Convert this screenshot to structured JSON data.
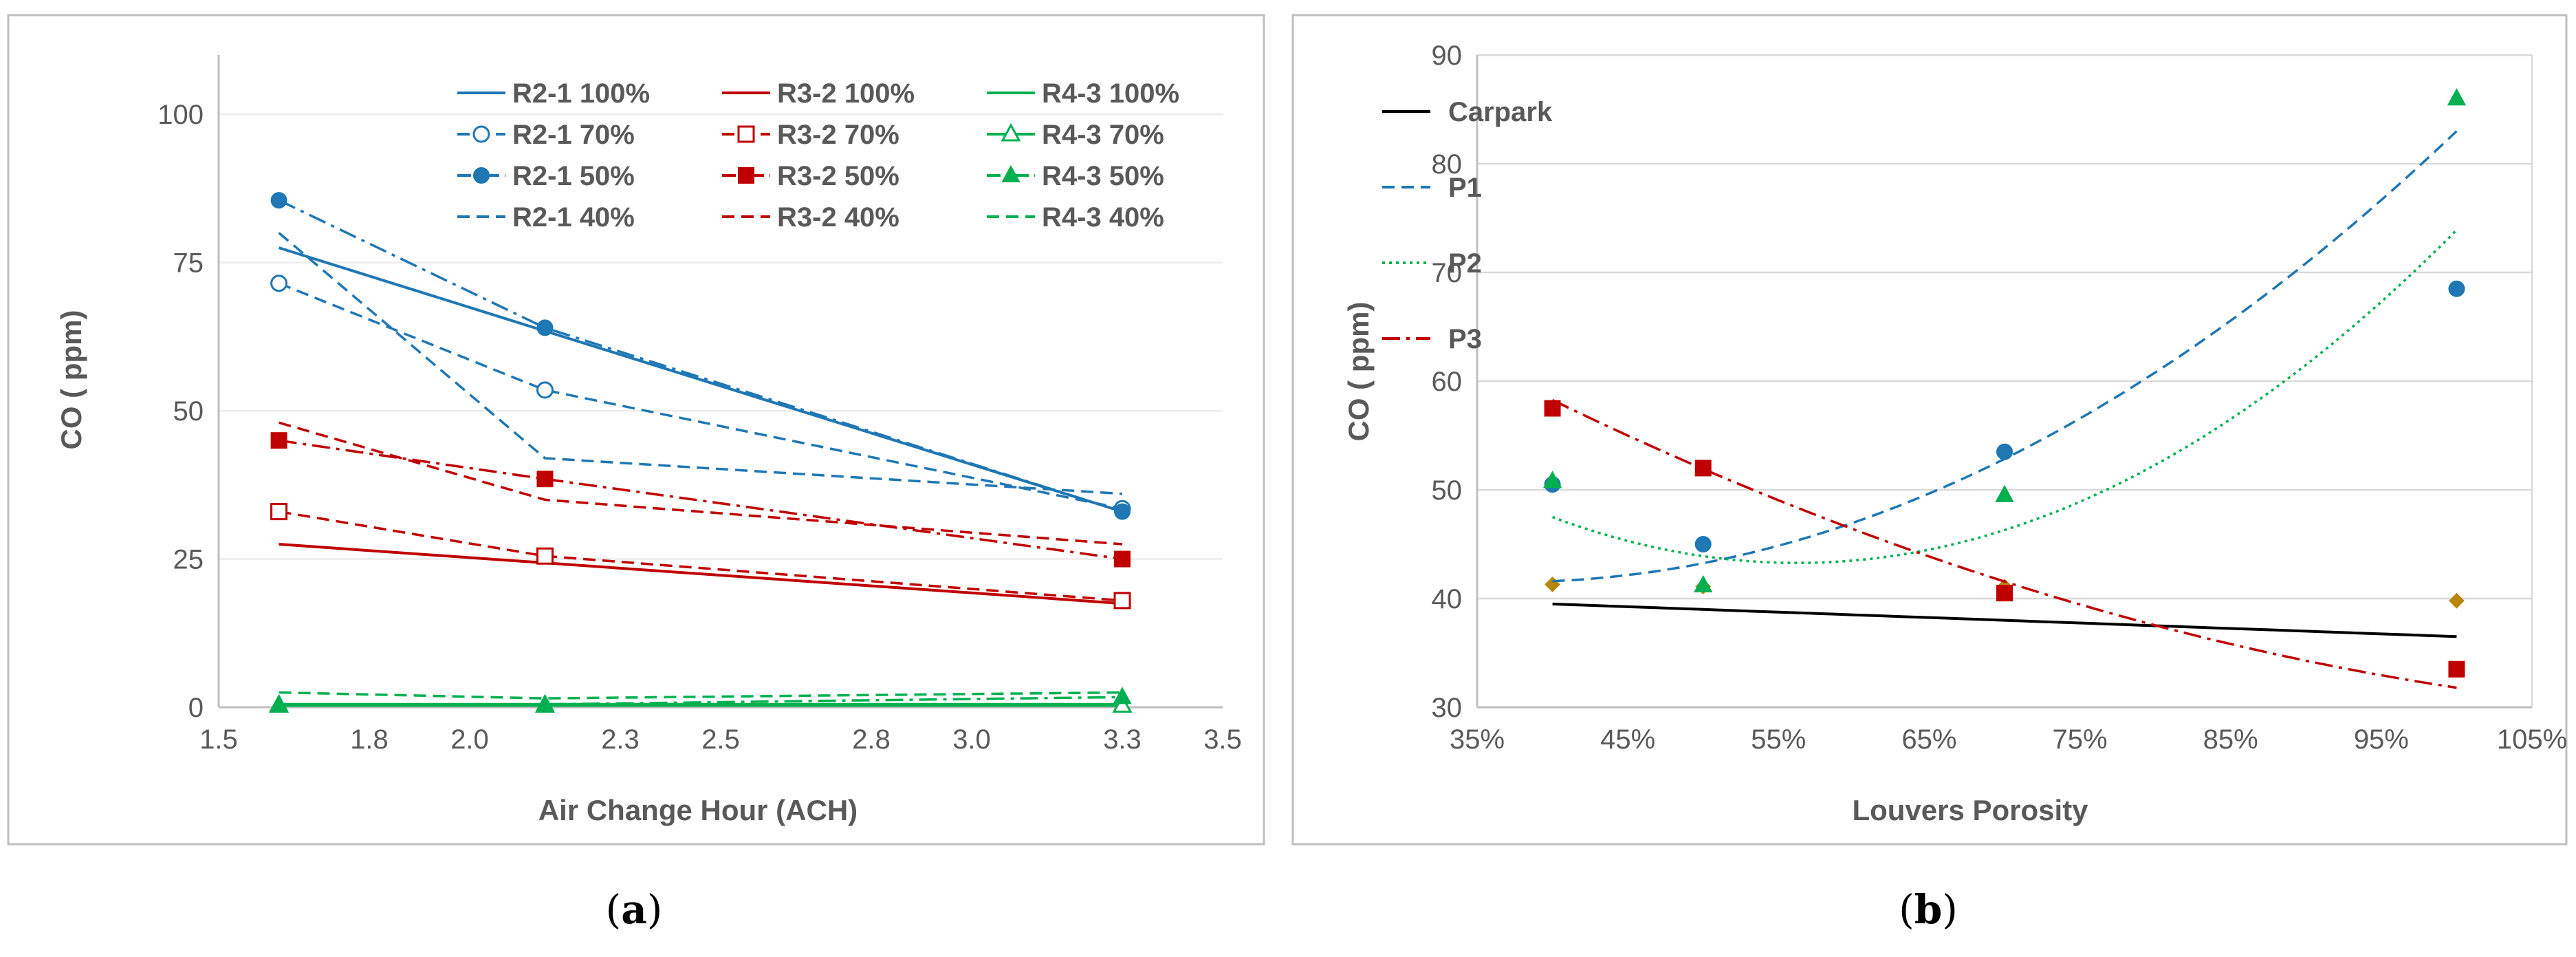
{
  "colors": {
    "blue": "#1f77b4",
    "red": "#c00000",
    "green": "#00b050",
    "black": "#000000",
    "gold": "#b8860b",
    "grid": "#d9d9d9",
    "frame": "#bfbfbf",
    "text": "#595959"
  },
  "chart_data": [
    {
      "type": "line",
      "caption_open": "(",
      "caption_letter": "a",
      "caption_close": ")",
      "title": "",
      "xlabel": "Air Change Hour (ACH)",
      "ylabel": "CO ( ppm)",
      "xlim": [
        1.5,
        3.5
      ],
      "ylim": [
        0,
        110
      ],
      "xticks": [
        1.5,
        1.8,
        2.0,
        2.3,
        2.5,
        2.8,
        3.0,
        3.3,
        3.5
      ],
      "xtick_labels": [
        "1.5",
        "1.8",
        "2.0",
        "2.3",
        "2.5",
        "2.8",
        "3.0",
        "3.3",
        "3.5"
      ],
      "yticks": [
        0,
        25,
        50,
        75,
        100
      ],
      "ytick_labels": [
        "0",
        "25",
        "50",
        "75",
        "100"
      ],
      "grid": true,
      "legend_position": "top-right",
      "series": [
        {
          "name": "R2-1 100%",
          "color": "blue",
          "style": "solid",
          "marker": "none",
          "x": [
            1.62,
            3.3
          ],
          "y": [
            77.5,
            33
          ]
        },
        {
          "name": "R3-2 100%",
          "color": "red",
          "style": "solid",
          "marker": "none",
          "x": [
            1.62,
            3.3
          ],
          "y": [
            27.5,
            17.5
          ]
        },
        {
          "name": "R4-3 100%",
          "color": "green",
          "style": "solid",
          "marker": "none",
          "x": [
            1.62,
            3.3
          ],
          "y": [
            0.5,
            0.5
          ]
        },
        {
          "name": "R2-1 70%",
          "color": "blue",
          "style": "dash",
          "marker": "circle-open",
          "x": [
            1.62,
            2.15,
            3.3
          ],
          "y": [
            71.5,
            53.5,
            33.5
          ]
        },
        {
          "name": "R3-2 70%",
          "color": "red",
          "style": "dash",
          "marker": "square-open",
          "x": [
            1.62,
            2.15,
            3.3
          ],
          "y": [
            33,
            25.5,
            18
          ]
        },
        {
          "name": "R4-3 70%",
          "color": "green",
          "style": "solid",
          "marker": "triangle-open",
          "x": [
            1.62,
            2.15,
            3.3
          ],
          "y": [
            0.3,
            0.3,
            0.3
          ]
        },
        {
          "name": "R2-1 50%",
          "color": "blue",
          "style": "dashdot",
          "marker": "circle",
          "x": [
            1.62,
            2.15,
            3.3
          ],
          "y": [
            85.5,
            64,
            33
          ]
        },
        {
          "name": "R3-2 50%",
          "color": "red",
          "style": "dashdot",
          "marker": "square",
          "x": [
            1.62,
            2.15,
            3.3
          ],
          "y": [
            45,
            38.5,
            25
          ]
        },
        {
          "name": "R4-3 50%",
          "color": "green",
          "style": "dashdot",
          "marker": "triangle",
          "x": [
            1.62,
            2.15,
            3.3
          ],
          "y": [
            0.5,
            0.5,
            1.7
          ]
        },
        {
          "name": "R2-1 40%",
          "color": "blue",
          "style": "dash",
          "marker": "none",
          "x": [
            1.62,
            2.15,
            3.3
          ],
          "y": [
            80,
            42,
            36
          ]
        },
        {
          "name": "R3-2 40%",
          "color": "red",
          "style": "dash",
          "marker": "none",
          "x": [
            1.62,
            2.15,
            3.3
          ],
          "y": [
            48,
            35,
            27.5
          ]
        },
        {
          "name": "R4-3 40%",
          "color": "green",
          "style": "dash",
          "marker": "none",
          "x": [
            1.62,
            2.15,
            3.3
          ],
          "y": [
            2.5,
            1.5,
            2.5
          ]
        }
      ]
    },
    {
      "type": "scatter",
      "caption_open": "(",
      "caption_letter": "b",
      "caption_close": ")",
      "title": "",
      "xlabel": "Louvers Porosity",
      "ylabel": "CO ( ppm)",
      "xlim": [
        35,
        105
      ],
      "ylim": [
        30,
        90
      ],
      "xticks": [
        35,
        45,
        55,
        65,
        75,
        85,
        95,
        105
      ],
      "xtick_labels": [
        "35%",
        "45%",
        "55%",
        "65%",
        "75%",
        "85%",
        "95%",
        "105%"
      ],
      "yticks": [
        30,
        40,
        50,
        60,
        70,
        80,
        90
      ],
      "ytick_labels": [
        "30",
        "40",
        "50",
        "60",
        "70",
        "80",
        "90"
      ],
      "grid": true,
      "legend_position": "top-left",
      "series": [
        {
          "name": "Carpark",
          "color": "black",
          "style": "solid",
          "marker": "diamond",
          "marker_color": "gold",
          "x": [
            40,
            50,
            70,
            100
          ],
          "y": [
            41.3,
            41.1,
            41.1,
            39.8
          ],
          "trend": [
            41.5,
            -0.05,
            0
          ]
        },
        {
          "name": "P1",
          "color": "blue",
          "style": "dash",
          "marker": "circle",
          "x": [
            40,
            50,
            70,
            100
          ],
          "y": [
            50.5,
            45,
            53.5,
            68.5
          ],
          "trend": [
            56.0,
            -0.78,
            0.0105
          ]
        },
        {
          "name": "P2",
          "color": "green",
          "style": "dot",
          "marker": "triangle",
          "x": [
            40,
            50,
            70,
            100
          ],
          "y": [
            50.8,
            41.2,
            49.5,
            86
          ],
          "trend": [
            93.9,
            -1.8,
            0.016
          ]
        },
        {
          "name": "P3",
          "color": "red",
          "style": "dashdot",
          "marker": "square",
          "x": [
            40,
            50,
            70,
            100
          ],
          "y": [
            57.5,
            52,
            40.5,
            33.5
          ],
          "trend": [
            91.3,
            -0.98,
            0.00385
          ]
        }
      ]
    }
  ]
}
